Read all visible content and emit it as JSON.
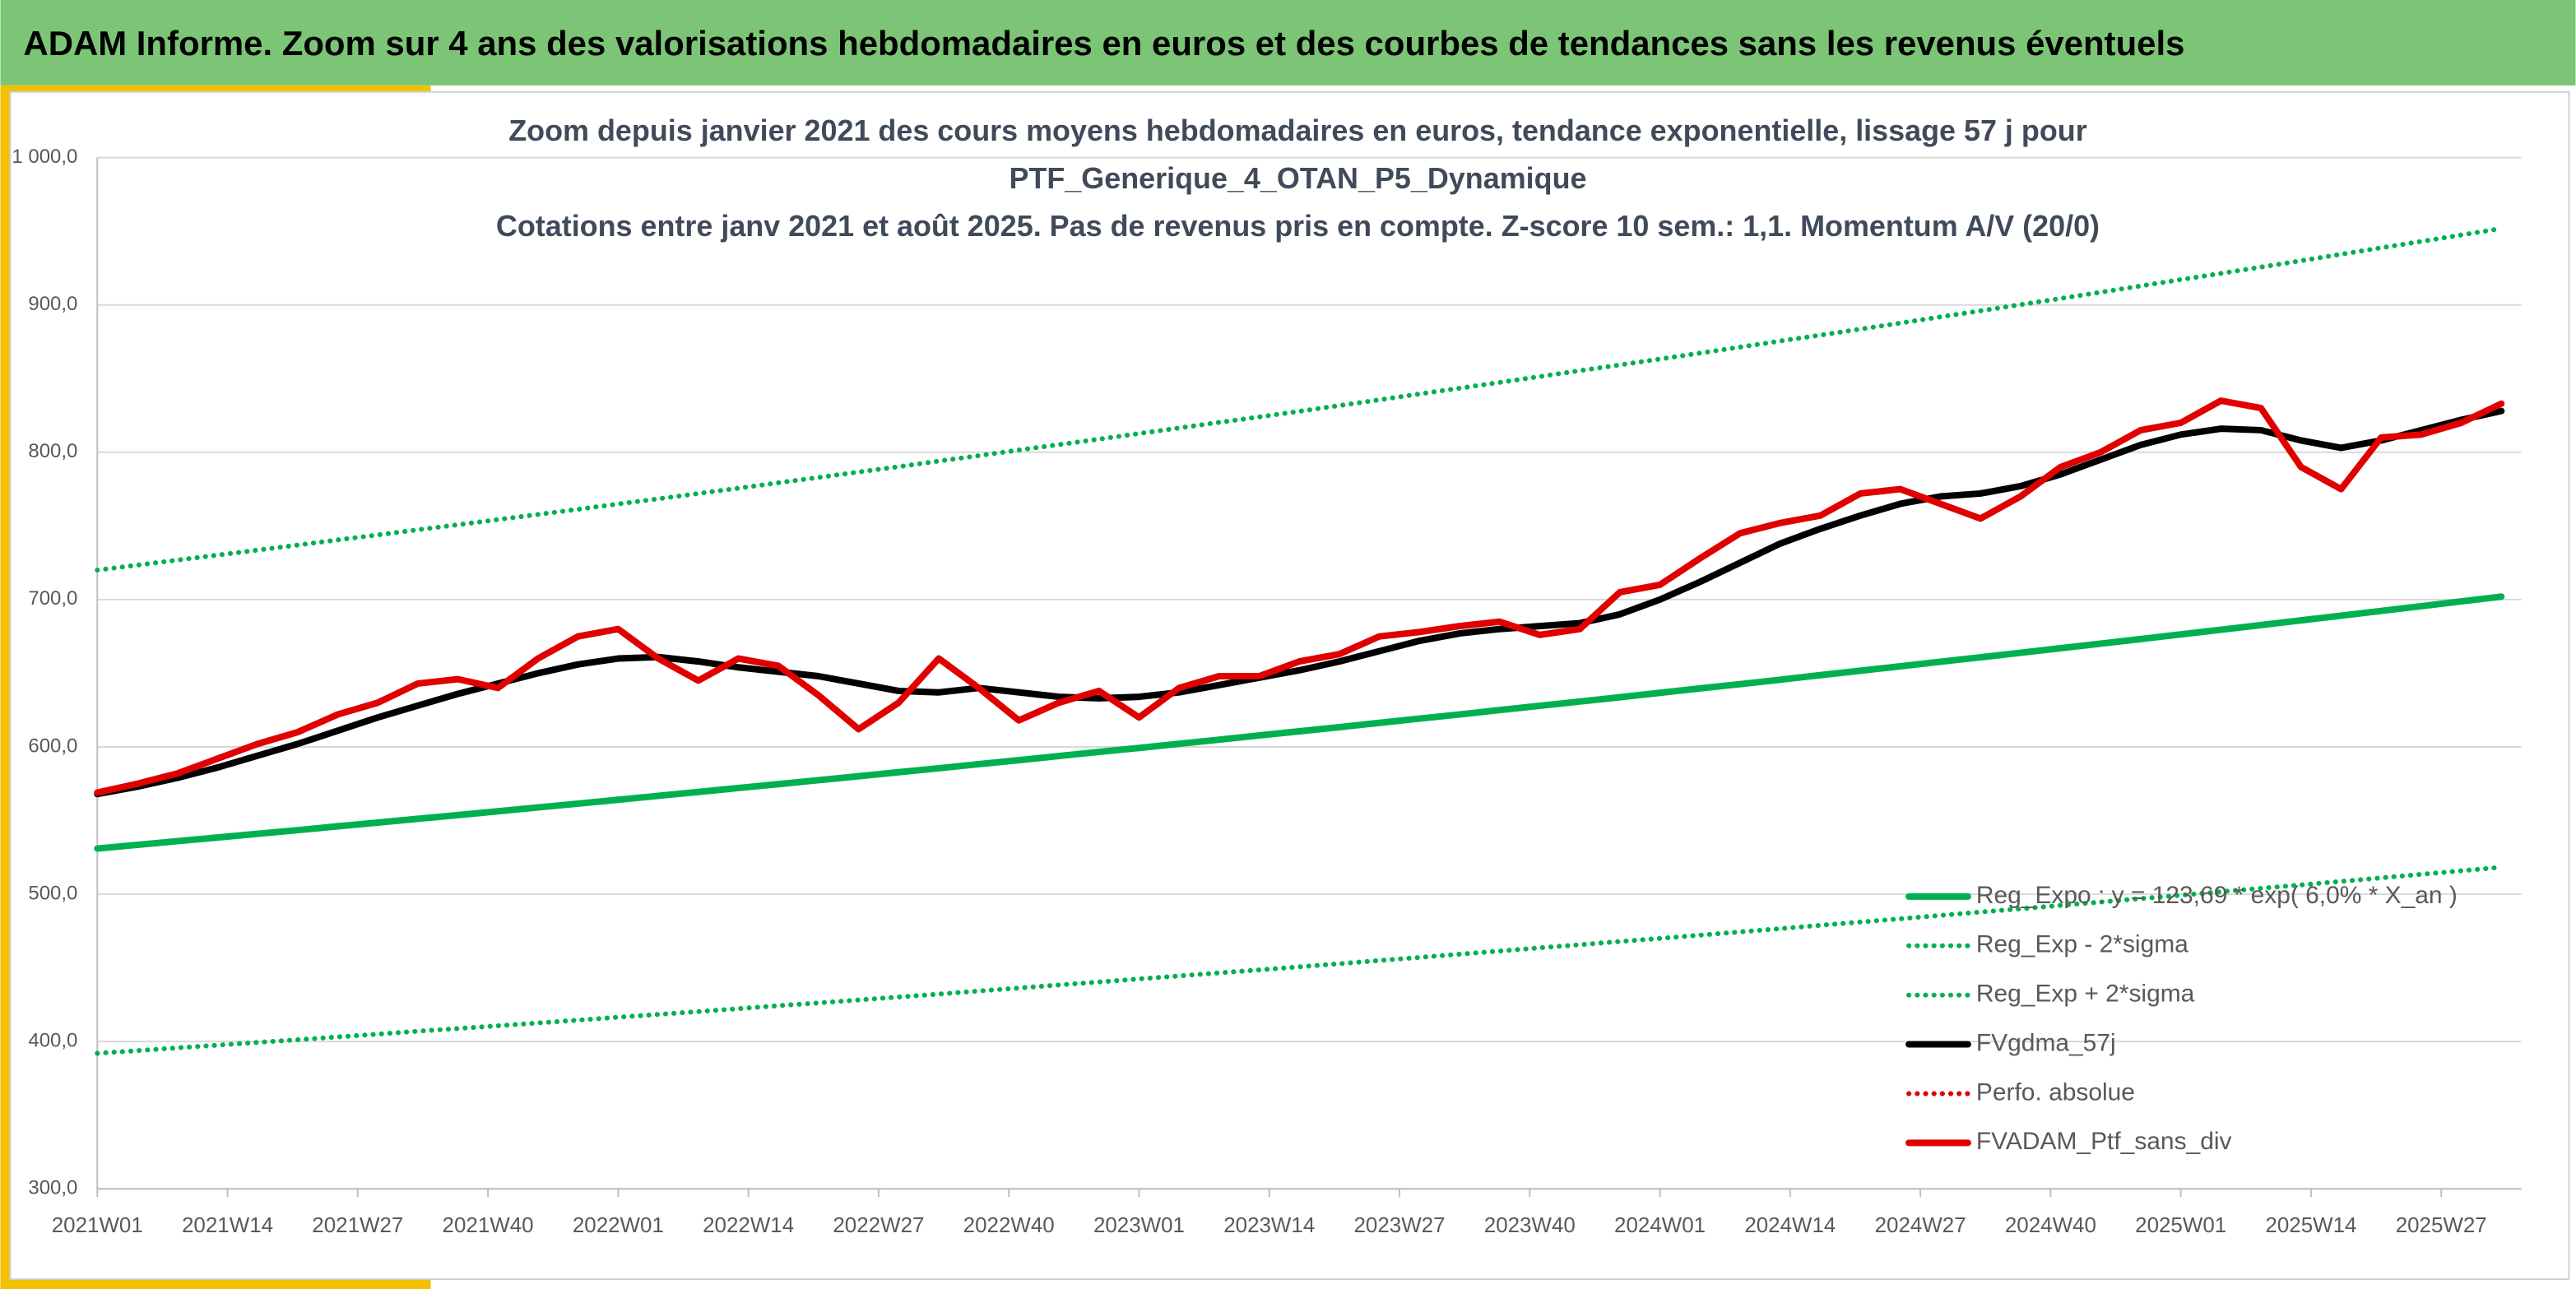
{
  "header": {
    "title": "ADAM Informe. Zoom sur 4 ans des valorisations hebdomadaires en euros et des courbes de tendances sans les revenus éventuels"
  },
  "chart_data": {
    "type": "line",
    "title": "Zoom depuis janvier 2021 des cours moyens hebdomadaires en euros, tendance exponentielle, lissage 57 j pour",
    "subtitle": "PTF_Generique_4_OTAN_P5_Dynamique",
    "note": "Cotations entre janv 2021 et août 2025. Pas de revenus pris en compte. Z-score 10 sem.: 1,1. Momentum A/V (20/0)",
    "x": [
      0,
      4,
      8,
      12,
      16,
      20,
      24,
      28,
      32,
      36,
      40,
      44,
      48,
      52,
      56,
      60,
      64,
      68,
      72,
      76,
      80,
      84,
      88,
      92,
      96,
      100,
      104,
      108,
      112,
      116,
      120,
      124,
      128,
      132,
      136,
      140,
      144,
      148,
      152,
      156,
      160,
      164,
      168,
      172,
      176,
      180,
      184,
      188,
      192,
      196,
      200,
      204,
      208,
      212,
      216,
      220,
      224,
      228,
      232,
      236,
      240
    ],
    "xlim": [
      0,
      242
    ],
    "xticks": [
      {
        "value": 0,
        "label": "2021W01"
      },
      {
        "value": 13,
        "label": "2021W14"
      },
      {
        "value": 26,
        "label": "2021W27"
      },
      {
        "value": 39,
        "label": "2021W40"
      },
      {
        "value": 52,
        "label": "2022W01"
      },
      {
        "value": 65,
        "label": "2022W14"
      },
      {
        "value": 78,
        "label": "2022W27"
      },
      {
        "value": 91,
        "label": "2022W40"
      },
      {
        "value": 104,
        "label": "2023W01"
      },
      {
        "value": 117,
        "label": "2023W14"
      },
      {
        "value": 130,
        "label": "2023W27"
      },
      {
        "value": 143,
        "label": "2023W40"
      },
      {
        "value": 156,
        "label": "2024W01"
      },
      {
        "value": 169,
        "label": "2024W14"
      },
      {
        "value": 182,
        "label": "2024W27"
      },
      {
        "value": 195,
        "label": "2024W40"
      },
      {
        "value": 208,
        "label": "2025W01"
      },
      {
        "value": 221,
        "label": "2025W14"
      },
      {
        "value": 234,
        "label": "2025W27"
      }
    ],
    "ylim": [
      300,
      1000
    ],
    "yticks": [
      {
        "value": 300,
        "label": "300,0"
      },
      {
        "value": 400,
        "label": "400,0"
      },
      {
        "value": 500,
        "label": "500,0"
      },
      {
        "value": 600,
        "label": "600,0"
      },
      {
        "value": 700,
        "label": "700,0"
      },
      {
        "value": 800,
        "label": "800,0"
      },
      {
        "value": 900,
        "label": "900,0"
      },
      {
        "value": 1000,
        "label": "1 000,0"
      }
    ],
    "grid": true,
    "legend": "lower right",
    "series": [
      {
        "name": "Reg_Expo : y = 123,69 * exp( 6,0% *  X_an )",
        "color": "#00b050",
        "style": "solid",
        "values": [
          531,
          533.5,
          536,
          538.5,
          541,
          543.5,
          546.1,
          548.6,
          551.2,
          553.7,
          556.3,
          558.9,
          561.5,
          564.1,
          566.8,
          569.4,
          572.1,
          574.7,
          577.4,
          580.1,
          582.8,
          585.5,
          588.3,
          591,
          593.8,
          596.6,
          599.3,
          602.1,
          604.9,
          607.8,
          610.6,
          613.4,
          616.3,
          619.2,
          622,
          625,
          627.9,
          630.8,
          633.7,
          636.7,
          639.7,
          642.6,
          645.6,
          648.7,
          651.7,
          654.7,
          657.8,
          660.8,
          663.9,
          667,
          670.1,
          673.2,
          676.4,
          679.5,
          682.7,
          685.9,
          689.1,
          692.3,
          695.5,
          698.8,
          702
        ]
      },
      {
        "name": "Reg_Exp - 2*sigma",
        "color": "#00b050",
        "style": "dotted",
        "values": [
          392,
          393.8,
          395.7,
          397.5,
          399.4,
          401.2,
          403.1,
          405,
          407,
          408.8,
          410.7,
          412.6,
          414.5,
          416.5,
          418.4,
          420.3,
          422.3,
          424.3,
          426.2,
          428.2,
          430.2,
          432.2,
          434.3,
          436.3,
          438.4,
          440.4,
          442.5,
          444.5,
          446.6,
          448.6,
          450.7,
          452.8,
          455,
          457.1,
          459.3,
          461.4,
          463.6,
          465.7,
          467.9,
          470,
          472.2,
          474.4,
          476.6,
          478.9,
          481.1,
          483.3,
          485.6,
          487.9,
          490.1,
          492.4,
          494.7,
          497,
          499.3,
          501.7,
          504,
          506.3,
          508.7,
          511.1,
          513.5,
          515.9,
          518.3
        ]
      },
      {
        "name": "Reg_Exp + 2*sigma",
        "color": "#00b050",
        "style": "dotted",
        "values": [
          720,
          723.4,
          726.8,
          730.2,
          733.6,
          737,
          740.5,
          743.9,
          747.4,
          750.8,
          754.3,
          757.8,
          761.3,
          764.9,
          768.4,
          772,
          775.6,
          779.3,
          782.9,
          786.6,
          790.2,
          794,
          797.7,
          801.5,
          805.2,
          808.9,
          812.7,
          816.5,
          820.3,
          824,
          827.8,
          831.7,
          835.6,
          839.6,
          843.5,
          847.4,
          851.4,
          855.4,
          859.3,
          863.3,
          867.3,
          871.4,
          875.5,
          879.5,
          883.6,
          887.7,
          891.9,
          896,
          900.2,
          904.4,
          908.6,
          912.9,
          917.2,
          921.4,
          925.7,
          930,
          934.4,
          938.8,
          943.1,
          947.5,
          951.9
        ]
      },
      {
        "name": "FVgdma_57j",
        "color": "#000000",
        "style": "solid",
        "values": [
          568,
          573,
          579,
          586,
          594,
          602,
          611,
          620,
          628,
          636,
          643,
          650,
          656,
          660,
          661,
          658,
          654,
          651,
          648,
          643,
          638,
          637,
          640,
          637,
          634,
          633,
          634,
          637,
          642,
          647,
          652,
          658,
          665,
          672,
          677,
          680,
          682,
          684,
          690,
          700,
          712,
          725,
          738,
          748,
          757,
          765,
          770,
          772,
          777,
          785,
          795,
          805,
          812,
          816,
          815,
          808,
          803,
          808,
          815,
          822,
          828
        ]
      },
      {
        "name": "Perfo. absolue",
        "color": "#e00000",
        "style": "dotted",
        "values": [
          null,
          null,
          null,
          null,
          null,
          null,
          null,
          null,
          null,
          null,
          null,
          null,
          null,
          null,
          null,
          null,
          null,
          null,
          null,
          null,
          null,
          null,
          null,
          null,
          null,
          null,
          null,
          null,
          null,
          null,
          null,
          null,
          null,
          null,
          null,
          null,
          null,
          null,
          null,
          null,
          null,
          null,
          null,
          null,
          null,
          null,
          null,
          null,
          null,
          null,
          null,
          null,
          null,
          null,
          null,
          null,
          null,
          null,
          null,
          null,
          null
        ]
      },
      {
        "name": "FVADAM_Ptf_sans_div",
        "color": "#e00000",
        "style": "solid",
        "values": [
          569,
          575,
          582,
          592,
          602,
          610,
          622,
          630,
          643,
          646,
          640,
          660,
          675,
          680,
          660,
          645,
          660,
          655,
          635,
          612,
          630,
          660,
          640,
          618,
          630,
          638,
          620,
          640,
          648,
          648,
          658,
          663,
          675,
          678,
          682,
          685,
          676,
          680,
          705,
          710,
          728,
          745,
          752,
          757,
          772,
          775,
          765,
          755,
          770,
          790,
          800,
          815,
          820,
          835,
          830,
          790,
          775,
          810,
          812,
          820,
          833
        ]
      }
    ]
  }
}
